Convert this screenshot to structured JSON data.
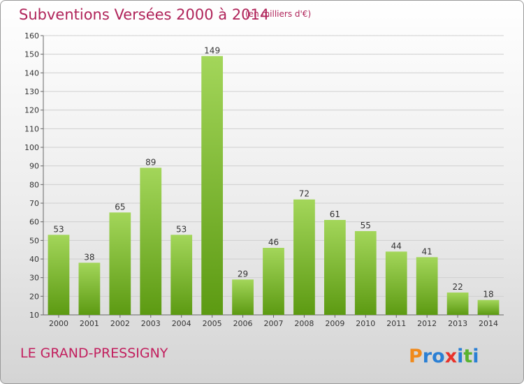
{
  "header": {
    "title": "Subventions Versées 2000 à 2014",
    "unit": "(en milliers d'€)"
  },
  "footer": {
    "commune": "LE GRAND-PRESSIGNY",
    "logo_text": "Proxiti"
  },
  "colors": {
    "title": "#b0245a",
    "bar_light": "#a3d65a",
    "bar_dark": "#5c9a12",
    "grid": "#cfcfcf",
    "logo_letters": [
      "#f08a1c",
      "#2a7fd4",
      "#2a7fd4",
      "#e8322a",
      "#2a7fd4",
      "#5ab330",
      "#2a7fd4"
    ]
  },
  "chart_data": {
    "type": "bar",
    "categories": [
      "2000",
      "2001",
      "2002",
      "2003",
      "2004",
      "2005",
      "2006",
      "2007",
      "2008",
      "2009",
      "2010",
      "2011",
      "2012",
      "2013",
      "2014"
    ],
    "values": [
      53,
      38,
      65,
      89,
      53,
      149,
      29,
      46,
      72,
      61,
      55,
      44,
      41,
      22,
      18
    ],
    "y_ticks": [
      10,
      20,
      30,
      40,
      50,
      60,
      70,
      80,
      90,
      100,
      110,
      120,
      130,
      140,
      150,
      160
    ],
    "ylim": [
      10,
      160
    ],
    "grid": true,
    "legend": false
  }
}
